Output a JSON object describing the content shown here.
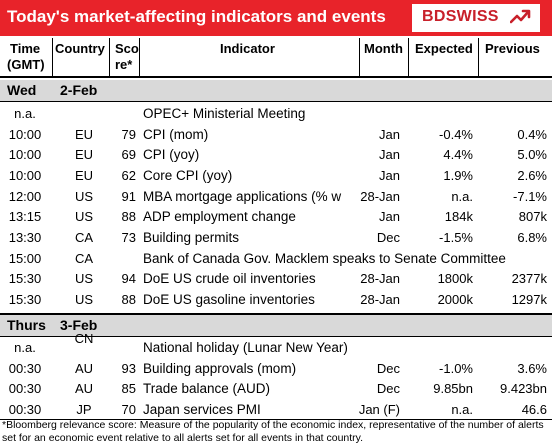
{
  "header": {
    "title": "Today's market-affecting indicators and events",
    "logo_text": "BDSWISS",
    "accent_color": "#e8232a"
  },
  "columns": {
    "time": "Time",
    "time_sub": "(GMT)",
    "country": "Country",
    "score": "Sco",
    "score_sub": "re*",
    "indicator": "Indicator",
    "month": "Month",
    "expected": "Expected",
    "previous": "Previous"
  },
  "days": [
    {
      "day": "Wed",
      "date": "2-Feb",
      "rows": [
        {
          "time": "n.a.",
          "country": "",
          "score": "",
          "indicator": "OPEC+ Ministerial Meeting",
          "month": "",
          "expected": "",
          "previous": ""
        },
        {
          "time": "10:00",
          "country": "EU",
          "score": "79",
          "indicator": "CPI (mom)",
          "month": "Jan",
          "expected": "-0.4%",
          "previous": "0.4%"
        },
        {
          "time": "10:00",
          "country": "EU",
          "score": "69",
          "indicator": "CPI (yoy)",
          "month": "Jan",
          "expected": "4.4%",
          "previous": "5.0%"
        },
        {
          "time": "10:00",
          "country": "EU",
          "score": "62",
          "indicator": "Core CPI (yoy)",
          "month": "Jan",
          "expected": "1.9%",
          "previous": "2.6%"
        },
        {
          "time": "12:00",
          "country": "US",
          "score": "91",
          "indicator": "MBA mortgage applications (% w",
          "month": "28-Jan",
          "expected": "n.a.",
          "previous": "-7.1%"
        },
        {
          "time": "13:15",
          "country": "US",
          "score": "88",
          "indicator": "ADP employment change",
          "month": "Jan",
          "expected": "184k",
          "previous": "807k"
        },
        {
          "time": "13:30",
          "country": "CA",
          "score": "73",
          "indicator": "Building permits",
          "month": "Dec",
          "expected": "-1.5%",
          "previous": "6.8%"
        },
        {
          "time": "15:00",
          "country": "CA",
          "score": "",
          "indicator": "Bank of  Canada Gov. Macklem speaks to Senate Committee",
          "month": "",
          "expected": "",
          "previous": ""
        },
        {
          "time": "15:30",
          "country": "US",
          "score": "94",
          "indicator": "DoE US crude oil inventories",
          "month": "28-Jan",
          "expected": "1800k",
          "previous": "2377k"
        },
        {
          "time": "15:30",
          "country": "US",
          "score": "88",
          "indicator": "DoE US gasoline inventories",
          "month": "28-Jan",
          "expected": "2000k",
          "previous": "1297k"
        }
      ]
    },
    {
      "day": "Thurs",
      "date": "3-Feb",
      "rows": [
        {
          "time": "n.a.",
          "country": "CN",
          "score": "",
          "indicator": "National holiday (Lunar New Year)",
          "month": "",
          "expected": "",
          "previous": ""
        },
        {
          "time": "00:30",
          "country": "AU",
          "score": "93",
          "indicator": "Building approvals (mom)",
          "month": "Dec",
          "expected": "-1.0%",
          "previous": "3.6%"
        },
        {
          "time": "00:30",
          "country": "AU",
          "score": "85",
          "indicator": "Trade balance (AUD)",
          "month": "Dec",
          "expected": "9.85bn",
          "previous": "9.423bn"
        },
        {
          "time": "00:30",
          "country": "JP",
          "score": "70",
          "indicator": "Japan services PMI",
          "month": "Jan (F)",
          "expected": "n.a.",
          "previous": "46.6"
        }
      ]
    }
  ],
  "footnote": "*Bloomberg relevance score:  Measure of the popularity of the economic index, representative of the number of alerts set for an economic event relative to all alerts set for all events in that country."
}
